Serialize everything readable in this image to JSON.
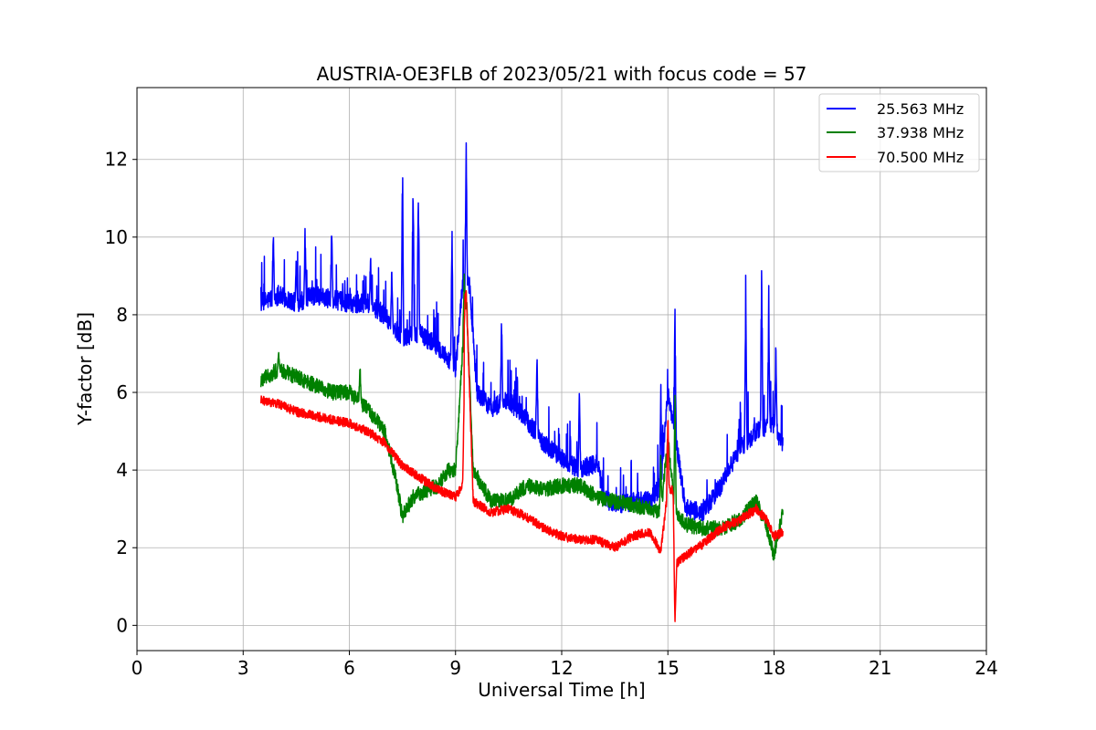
{
  "chart_data": {
    "type": "line",
    "title": "AUSTRIA-OE3FLB of 2023/05/21 with focus code = 57",
    "xlabel": "Universal Time [h]",
    "ylabel": "Y-factor [dB]",
    "xlim": [
      0,
      24
    ],
    "ylim": [
      -0.65,
      13.85
    ],
    "xticks": [
      0,
      3,
      6,
      9,
      12,
      15,
      18,
      21,
      24
    ],
    "yticks": [
      0,
      2,
      4,
      6,
      8,
      10,
      12
    ],
    "grid": true,
    "legend_position": "top-right",
    "series": [
      {
        "name": "25.563 MHz",
        "color": "#0000ff",
        "noise": 0.25,
        "x": [
          3.5,
          4.0,
          4.5,
          5.0,
          5.5,
          6.0,
          6.5,
          7.0,
          7.5,
          8.0,
          8.5,
          9.0,
          9.2,
          9.4,
          9.6,
          10.0,
          10.5,
          11.0,
          11.5,
          12.0,
          12.5,
          13.0,
          13.2,
          13.5,
          14.0,
          14.5,
          14.8,
          15.0,
          15.2,
          15.5,
          16.0,
          16.5,
          17.0,
          17.5,
          18.0,
          18.25
        ],
        "y": [
          8.3,
          8.5,
          8.3,
          8.5,
          8.4,
          8.3,
          8.3,
          8.0,
          7.4,
          7.5,
          7.2,
          6.6,
          8.8,
          8.8,
          6.0,
          5.6,
          5.8,
          5.3,
          4.7,
          4.3,
          4.0,
          4.2,
          3.3,
          3.1,
          3.2,
          3.2,
          3.6,
          6.0,
          5.0,
          3.0,
          2.9,
          3.6,
          4.5,
          5.0,
          5.2,
          4.6
        ],
        "spikes": [
          [
            3.85,
            10.4
          ],
          [
            4.5,
            9.6
          ],
          [
            4.75,
            10.4
          ],
          [
            5.5,
            10.7
          ],
          [
            6.6,
            9.6
          ],
          [
            7.2,
            9.4
          ],
          [
            7.5,
            12.7
          ],
          [
            7.8,
            12.6
          ],
          [
            7.95,
            12.4
          ],
          [
            8.9,
            11.0
          ],
          [
            9.3,
            13.2
          ],
          [
            10.3,
            8.3
          ],
          [
            11.3,
            7.5
          ],
          [
            12.5,
            6.2
          ],
          [
            14.8,
            6.6
          ],
          [
            15.2,
            8.3
          ],
          [
            17.2,
            9.4
          ],
          [
            17.65,
            9.9
          ],
          [
            17.85,
            8.9
          ],
          [
            18.05,
            7.5
          ]
        ]
      },
      {
        "name": "37.938 MHz",
        "color": "#008000",
        "noise": 0.2,
        "x": [
          3.5,
          4.0,
          4.5,
          5.0,
          5.5,
          6.0,
          6.5,
          7.0,
          7.3,
          7.5,
          7.8,
          8.0,
          8.5,
          8.8,
          9.0,
          9.3,
          9.5,
          10.0,
          10.5,
          11.0,
          11.5,
          12.0,
          12.5,
          13.0,
          13.5,
          14.0,
          14.5,
          14.8,
          15.0,
          15.2,
          15.5,
          16.0,
          16.5,
          17.0,
          17.5,
          17.8,
          18.0,
          18.25
        ],
        "y": [
          6.3,
          6.6,
          6.4,
          6.2,
          6.0,
          6.0,
          5.6,
          5.0,
          3.8,
          2.8,
          3.3,
          3.4,
          3.6,
          4.0,
          4.0,
          8.6,
          4.0,
          3.2,
          3.2,
          3.6,
          3.5,
          3.6,
          3.6,
          3.3,
          3.2,
          3.1,
          3.0,
          2.9,
          4.8,
          3.0,
          2.6,
          2.5,
          2.5,
          2.7,
          3.2,
          2.5,
          1.8,
          3.0
        ],
        "spikes": [
          [
            4.0,
            7.1
          ],
          [
            6.3,
            6.9
          ],
          [
            9.25,
            9.2
          ],
          [
            14.8,
            4.7
          ],
          [
            15.2,
            6.5
          ]
        ]
      },
      {
        "name": "70.500 MHz",
        "color": "#ff0000",
        "noise": 0.12,
        "x": [
          3.5,
          4.0,
          4.5,
          5.0,
          5.5,
          6.0,
          6.5,
          7.0,
          7.5,
          8.0,
          8.5,
          9.0,
          9.2,
          9.3,
          9.5,
          10.0,
          10.5,
          11.0,
          11.5,
          12.0,
          12.5,
          13.0,
          13.5,
          14.0,
          14.5,
          14.8,
          15.0,
          15.15,
          15.2,
          15.25,
          15.5,
          16.0,
          16.5,
          17.0,
          17.5,
          17.8,
          18.0,
          18.25
        ],
        "y": [
          5.8,
          5.7,
          5.5,
          5.4,
          5.3,
          5.2,
          5.0,
          4.7,
          4.1,
          3.8,
          3.5,
          3.3,
          3.6,
          8.7,
          3.2,
          2.9,
          3.0,
          2.8,
          2.5,
          2.3,
          2.2,
          2.2,
          2.0,
          2.3,
          2.4,
          1.9,
          3.5,
          3.5,
          0.0,
          1.6,
          1.8,
          2.1,
          2.5,
          2.7,
          3.0,
          2.7,
          2.3,
          2.4
        ],
        "spikes": [
          [
            9.28,
            8.9
          ],
          [
            15.0,
            6.0
          ]
        ]
      }
    ]
  }
}
